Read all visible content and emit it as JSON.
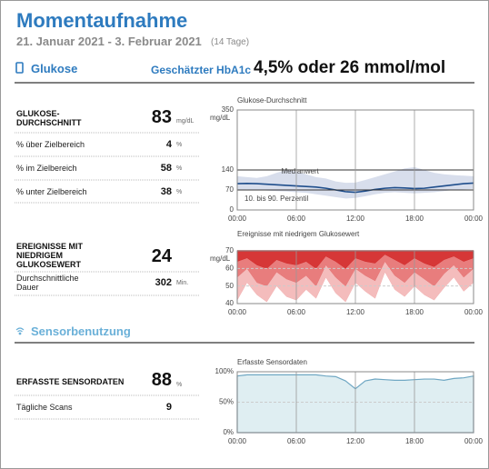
{
  "header": {
    "title": "Momentaufnahme",
    "date_range": "21. Januar 2021 - 3. Februar 2021",
    "days": "(14 Tage)"
  },
  "glucose": {
    "heading": "Glukose",
    "hba1c_label": "Geschätzter HbA1c",
    "hba1c_value": "4,5% oder 26 mmol/mol",
    "average": {
      "label": "GLUKOSE-DURCHSCHNITT",
      "value": 83,
      "unit": "mg/dL"
    },
    "ranges": [
      {
        "label": "% über Zielbereich",
        "value": 4,
        "unit": "%"
      },
      {
        "label": "% im Zielbereich",
        "value": 58,
        "unit": "%"
      },
      {
        "label": "% unter Zielbereich",
        "value": 38,
        "unit": "%"
      }
    ],
    "low_events": {
      "label": "EREIGNISSE MIT NIEDRIGEM GLUKOSEWERT",
      "value": 24
    },
    "duration": {
      "label": "Durchschnittliche Dauer",
      "value": 302,
      "unit": "Min."
    }
  },
  "sensor": {
    "heading": "Sensorbenutzung",
    "captured": {
      "label": "ERFASSTE SENSORDATEN",
      "value": 88,
      "unit": "%"
    },
    "scans": {
      "label": "Tägliche Scans",
      "value": 9
    }
  },
  "chart_data": [
    {
      "type": "band-line",
      "title": "Glukose-Durchschnitt",
      "y_label": "mg/dL",
      "x": [
        0,
        1,
        2,
        3,
        4,
        5,
        6,
        7,
        8,
        9,
        10,
        11,
        12,
        13,
        14,
        15,
        16,
        17,
        18,
        19,
        20,
        21,
        22,
        23,
        24
      ],
      "xlim": [
        0,
        24
      ],
      "xticks": [
        {
          "value": 0,
          "label": "00:00"
        },
        {
          "value": 6,
          "label": "06:00"
        },
        {
          "value": 12,
          "label": "12:00"
        },
        {
          "value": 18,
          "label": "18:00"
        },
        {
          "value": 24,
          "label": "00:00"
        }
      ],
      "ylim": [
        0,
        350
      ],
      "yticks": [
        0,
        70,
        140,
        350
      ],
      "grid_color": "#333",
      "series": [
        {
          "name": "10. bis 90. Perzentil",
          "color": "#d8deec",
          "upper": [
            118,
            115,
            112,
            118,
            130,
            140,
            135,
            125,
            115,
            110,
            100,
            95,
            96,
            105,
            115,
            125,
            135,
            145,
            150,
            140,
            130,
            125,
            122,
            120,
            118
          ],
          "lower": [
            70,
            72,
            70,
            68,
            66,
            65,
            62,
            60,
            55,
            50,
            45,
            40,
            42,
            48,
            55,
            60,
            62,
            60,
            58,
            60,
            62,
            66,
            70,
            72,
            74
          ]
        },
        {
          "name": "Medianwert",
          "color": "#1f4e8c",
          "values": [
            92,
            93,
            92,
            90,
            88,
            86,
            84,
            82,
            80,
            76,
            70,
            64,
            62,
            66,
            72,
            76,
            78,
            77,
            75,
            76,
            80,
            84,
            88,
            92,
            94
          ]
        }
      ]
    },
    {
      "type": "area-down",
      "title": "Ereignisse mit niedrigem Glukosewert",
      "y_label": "mg/dL",
      "x": [
        0,
        1,
        2,
        3,
        4,
        5,
        6,
        7,
        8,
        9,
        10,
        11,
        12,
        13,
        14,
        15,
        16,
        17,
        18,
        19,
        20,
        21,
        22,
        23,
        24
      ],
      "xlim": [
        0,
        24
      ],
      "xticks": [
        {
          "value": 0,
          "label": "00:00"
        },
        {
          "value": 6,
          "label": "06:00"
        },
        {
          "value": 12,
          "label": "12:00"
        },
        {
          "value": 18,
          "label": "18:00"
        },
        {
          "value": 24,
          "label": "00:00"
        }
      ],
      "ylim": [
        40,
        70
      ],
      "yticks": [
        40,
        50,
        60,
        70
      ],
      "grid_color": "#ccc",
      "tick_color": "#cc2020",
      "series": [
        {
          "color": "#f2b0b0",
          "values": [
            42,
            52,
            45,
            41,
            50,
            44,
            42,
            48,
            43,
            55,
            46,
            41,
            52,
            47,
            43,
            58,
            48,
            44,
            50,
            45,
            42,
            49,
            55,
            47,
            52
          ]
        },
        {
          "color": "#e57272",
          "values": [
            55,
            60,
            52,
            50,
            58,
            54,
            52,
            56,
            50,
            62,
            55,
            50,
            60,
            56,
            53,
            64,
            56,
            52,
            58,
            54,
            50,
            57,
            62,
            55,
            60
          ]
        },
        {
          "color": "#d22a2a",
          "values": [
            64,
            66,
            62,
            60,
            65,
            63,
            62,
            64,
            60,
            67,
            64,
            60,
            66,
            64,
            63,
            68,
            65,
            62,
            66,
            63,
            61,
            65,
            67,
            64,
            66
          ]
        }
      ]
    },
    {
      "type": "area",
      "title": "Erfasste Sensordaten",
      "x": [
        0,
        1,
        2,
        3,
        4,
        5,
        6,
        7,
        8,
        9,
        10,
        11,
        12,
        13,
        14,
        15,
        16,
        17,
        18,
        19,
        20,
        21,
        22,
        23,
        24
      ],
      "xlim": [
        0,
        24
      ],
      "xticks": [
        {
          "value": 0,
          "label": "00:00"
        },
        {
          "value": 6,
          "label": "06:00"
        },
        {
          "value": 12,
          "label": "12:00"
        },
        {
          "value": 18,
          "label": "18:00"
        },
        {
          "value": 24,
          "label": "00:00"
        }
      ],
      "ylim": [
        0,
        100
      ],
      "yticks": [
        {
          "value": 0,
          "label": "0%"
        },
        {
          "value": 50,
          "label": "50%"
        },
        {
          "value": 100,
          "label": "100%"
        }
      ],
      "grid_color": "#ccc",
      "series": [
        {
          "color": "#6fa7c3",
          "values": [
            93,
            95,
            95,
            95,
            95,
            95,
            95,
            95,
            95,
            93,
            92,
            85,
            72,
            85,
            88,
            87,
            86,
            86,
            87,
            88,
            88,
            86,
            89,
            90,
            93
          ]
        }
      ]
    }
  ]
}
